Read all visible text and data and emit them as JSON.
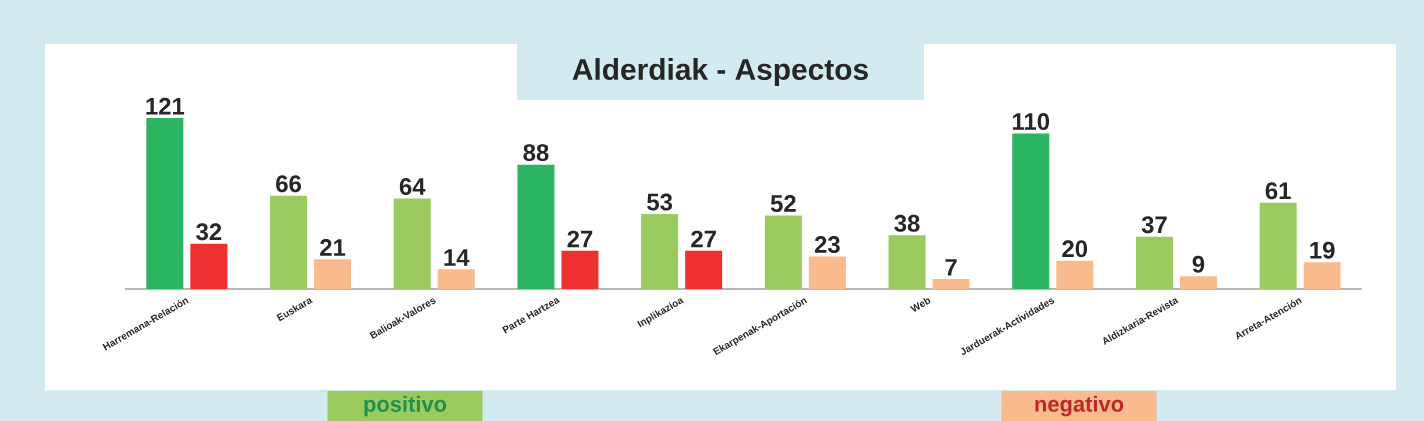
{
  "chart_data": {
    "type": "bar",
    "title": "Alderdiak - Aspectos",
    "categories": [
      "Harremana-Relación",
      "Euskara",
      "Balioak-Valores",
      "Parte Hartzea",
      "Inplikazioa",
      "Ekarpenak-Aportación",
      "Web",
      "Jarduerak-Actividades",
      "Aldizkaria-Revista",
      "Arreta-Atención"
    ],
    "series": [
      {
        "name": "positivo",
        "color": "#9bcb5f",
        "colors": [
          "#2bb462",
          "#9bcb5f",
          "#9bcb5f",
          "#2bb462",
          "#9bcb5f",
          "#9bcb5f",
          "#9bcb5f",
          "#2bb462",
          "#9bcb5f",
          "#9bcb5f"
        ],
        "values": [
          121,
          66,
          64,
          88,
          53,
          52,
          38,
          110,
          37,
          61
        ]
      },
      {
        "name": "negativo",
        "color": "#f9bb8d",
        "colors": [
          "#ee3030",
          "#f9bb8d",
          "#f9bb8d",
          "#ee3030",
          "#ee3030",
          "#f9bb8d",
          "#f9bb8d",
          "#f9bb8d",
          "#f9bb8d",
          "#f9bb8d"
        ],
        "values": [
          32,
          21,
          14,
          27,
          27,
          23,
          7,
          20,
          9,
          19
        ]
      }
    ],
    "data_labels": true,
    "legend": "bottom",
    "grid": false
  }
}
